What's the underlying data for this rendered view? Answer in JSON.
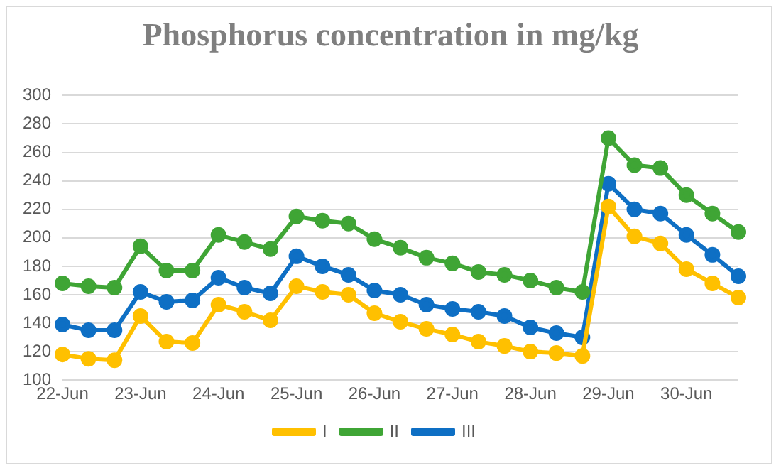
{
  "chart_data": {
    "type": "line",
    "title": "Phosphorus concentration in mg/kg",
    "categories": [
      "22-Jun",
      null,
      null,
      "23-Jun",
      null,
      null,
      "24-Jun",
      null,
      null,
      "25-Jun",
      null,
      null,
      "26-Jun",
      null,
      null,
      "27-Jun",
      null,
      null,
      "28-Jun",
      null,
      null,
      "29-Jun",
      null,
      null,
      "30-Jun",
      null,
      null
    ],
    "series": [
      {
        "name": "I",
        "color": "#ffc000",
        "values": [
          118,
          115,
          114,
          145,
          127,
          126,
          153,
          148,
          142,
          166,
          162,
          160,
          147,
          141,
          136,
          132,
          127,
          124,
          120,
          119,
          117,
          222,
          201,
          196,
          178,
          168,
          158
        ]
      },
      {
        "name": "II",
        "color": "#3fa535",
        "values": [
          168,
          166,
          165,
          194,
          177,
          177,
          202,
          197,
          192,
          215,
          212,
          210,
          199,
          193,
          186,
          182,
          176,
          174,
          170,
          165,
          162,
          270,
          251,
          249,
          230,
          217,
          204
        ]
      },
      {
        "name": "III",
        "color": "#0e6fc4",
        "values": [
          139,
          135,
          135,
          162,
          155,
          156,
          172,
          165,
          161,
          187,
          180,
          174,
          163,
          160,
          153,
          150,
          148,
          145,
          137,
          133,
          130,
          238,
          220,
          217,
          202,
          188,
          173
        ]
      }
    ],
    "ylim": [
      100,
      300
    ],
    "yticks": [
      100,
      120,
      140,
      160,
      180,
      200,
      220,
      240,
      260,
      280,
      300
    ],
    "grid": "y",
    "legend": "bottom",
    "marker": "circle",
    "line_style": "solid"
  }
}
